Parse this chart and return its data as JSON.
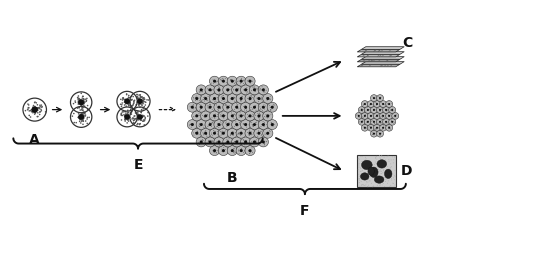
{
  "bg_color": "#ffffff",
  "label_A": "A",
  "label_B": "B",
  "label_C": "C",
  "label_D": "D",
  "label_E": "E",
  "label_F": "F",
  "cell_face": "#bbbbbb",
  "cell_edge": "#333333",
  "cell_inner": "#111111",
  "cluster_face": "#999999",
  "arrow_color": "#111111",
  "brace_color": "#111111",
  "font_size_label": 10,
  "fig_width": 5.34,
  "fig_height": 2.61,
  "xlim": [
    0,
    10
  ],
  "ylim": [
    0,
    5
  ]
}
